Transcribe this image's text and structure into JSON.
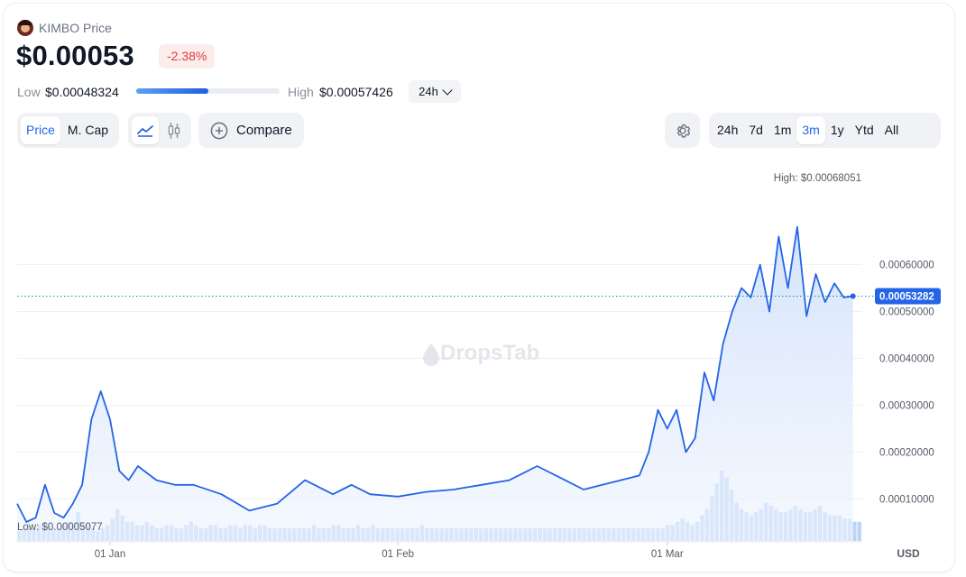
{
  "header": {
    "token_name": "KIMBO Price",
    "token_icon": "kimbo-token-logo",
    "price": "$0.00053",
    "change": "-2.38%",
    "low_label": "Low",
    "low_value": "$0.00048324",
    "high_label": "High",
    "high_value": "$0.00057426",
    "range_position": 0.5,
    "range_period": "24h"
  },
  "toolbar": {
    "metric_tabs": [
      "Price",
      "M. Cap"
    ],
    "active_metric": "Price",
    "chart_style_icons": [
      "line-chart-icon",
      "candlestick-icon"
    ],
    "compare_label": "Compare",
    "settings_icon": "gear-icon",
    "periods": [
      "24h",
      "7d",
      "1m",
      "3m",
      "1y",
      "Ytd",
      "All"
    ],
    "active_period": "3m"
  },
  "colors": {
    "line": "#2464e6",
    "accent": "#2464e6",
    "negative": "#e03b3b",
    "negative_bg": "#fdecec",
    "volume": "#bcd4f7"
  },
  "chart_data": {
    "type": "line",
    "watermark": "DropsTab",
    "currency_label": "USD",
    "x_tick_labels": [
      "01 Jan",
      "01 Feb",
      "01 Mar"
    ],
    "y_tick_labels": [
      "0.00010000",
      "0.00020000",
      "0.00030000",
      "0.00040000",
      "0.00050000",
      "0.00060000"
    ],
    "y_ticks": [
      0.0001,
      0.0002,
      0.0003,
      0.0004,
      0.0005,
      0.0006
    ],
    "ylim": [
      1.04e-05,
      0.00078
    ],
    "grid": true,
    "current_value": 0.00053282,
    "current_label": "0.00053282",
    "high_annotation": "High: $0.00068051",
    "high_value": 0.00068051,
    "low_annotation": "Low: $0.00005077",
    "low_value": 5.077e-05,
    "xlim": [
      "2023-12-22",
      "2024-03-22"
    ],
    "series": [
      {
        "x": [
          "2023-12-22",
          "2023-12-23",
          "2023-12-24",
          "2023-12-25",
          "2023-12-26",
          "2023-12-27",
          "2023-12-28",
          "2023-12-29",
          "2023-12-30",
          "2023-12-31",
          "2024-01-01",
          "2024-01-02",
          "2024-01-03",
          "2024-01-04",
          "2024-01-06",
          "2024-01-08",
          "2024-01-10",
          "2024-01-13",
          "2024-01-16",
          "2024-01-19",
          "2024-01-22",
          "2024-01-25",
          "2024-01-27",
          "2024-01-29",
          "2024-02-01",
          "2024-02-04",
          "2024-02-07",
          "2024-02-10",
          "2024-02-13",
          "2024-02-16",
          "2024-02-19",
          "2024-02-21",
          "2024-02-23",
          "2024-02-25",
          "2024-02-27",
          "2024-02-28",
          "2024-02-29",
          "2024-03-01",
          "2024-03-02",
          "2024-03-03",
          "2024-03-04",
          "2024-03-05",
          "2024-03-06",
          "2024-03-07",
          "2024-03-08",
          "2024-03-09",
          "2024-03-10",
          "2024-03-11",
          "2024-03-12",
          "2024-03-13",
          "2024-03-14",
          "2024-03-15",
          "2024-03-16",
          "2024-03-17",
          "2024-03-18",
          "2024-03-19",
          "2024-03-20",
          "2024-03-21"
        ],
        "y": [
          9e-05,
          5.077e-05,
          6e-05,
          0.00013,
          7e-05,
          6e-05,
          9e-05,
          0.00013,
          0.00027,
          0.00033,
          0.00027,
          0.00016,
          0.00014,
          0.00017,
          0.00014,
          0.00013,
          0.00013,
          0.00011,
          7.5e-05,
          9e-05,
          0.00014,
          0.00011,
          0.00013,
          0.00011,
          0.000105,
          0.000115,
          0.00012,
          0.00013,
          0.00014,
          0.00017,
          0.00014,
          0.00012,
          0.00013,
          0.00014,
          0.00015,
          0.0002,
          0.00029,
          0.00025,
          0.00029,
          0.0002,
          0.00023,
          0.00037,
          0.00031,
          0.00043,
          0.0005,
          0.00055,
          0.00053,
          0.0006,
          0.0005,
          0.00066,
          0.00055,
          0.00068051,
          0.00049,
          0.00058,
          0.00052,
          0.00056,
          0.00053,
          0.00053282
        ]
      }
    ],
    "volume": [
      3,
      4,
      4,
      4,
      5,
      5,
      5,
      4,
      4,
      5,
      6,
      6,
      9,
      6,
      5,
      4,
      3,
      4,
      5,
      7,
      10,
      8,
      6,
      6,
      5,
      5,
      6,
      5,
      4,
      4,
      5,
      5,
      4,
      4,
      5,
      6,
      5,
      4,
      4,
      5,
      5,
      4,
      4,
      5,
      5,
      4,
      5,
      5,
      4,
      5,
      5,
      4,
      4,
      4,
      4,
      4,
      4,
      4,
      4,
      4,
      5,
      4,
      4,
      4,
      5,
      5,
      4,
      4,
      4,
      5,
      4,
      4,
      5,
      4,
      4,
      4,
      4,
      4,
      4,
      4,
      4,
      4,
      5,
      4,
      4,
      4,
      4,
      4,
      4,
      4,
      4,
      4,
      4,
      4,
      4,
      4,
      4,
      4,
      4,
      4,
      4,
      4,
      4,
      4,
      4,
      4,
      4,
      4,
      4,
      4,
      4,
      4,
      4,
      4,
      4,
      4,
      4,
      4,
      4,
      4,
      4,
      4,
      4,
      4,
      4,
      4,
      4,
      4,
      4,
      4,
      4,
      4,
      5,
      5,
      6,
      7,
      6,
      5,
      6,
      8,
      10,
      14,
      18,
      22,
      20,
      16,
      12,
      10,
      9,
      8,
      9,
      10,
      12,
      11,
      10,
      9,
      9,
      10,
      11,
      10,
      9,
      9,
      10,
      11,
      9,
      8,
      8,
      8,
      7,
      7,
      6,
      6
    ],
    "volume_note": "relative volume levels"
  }
}
